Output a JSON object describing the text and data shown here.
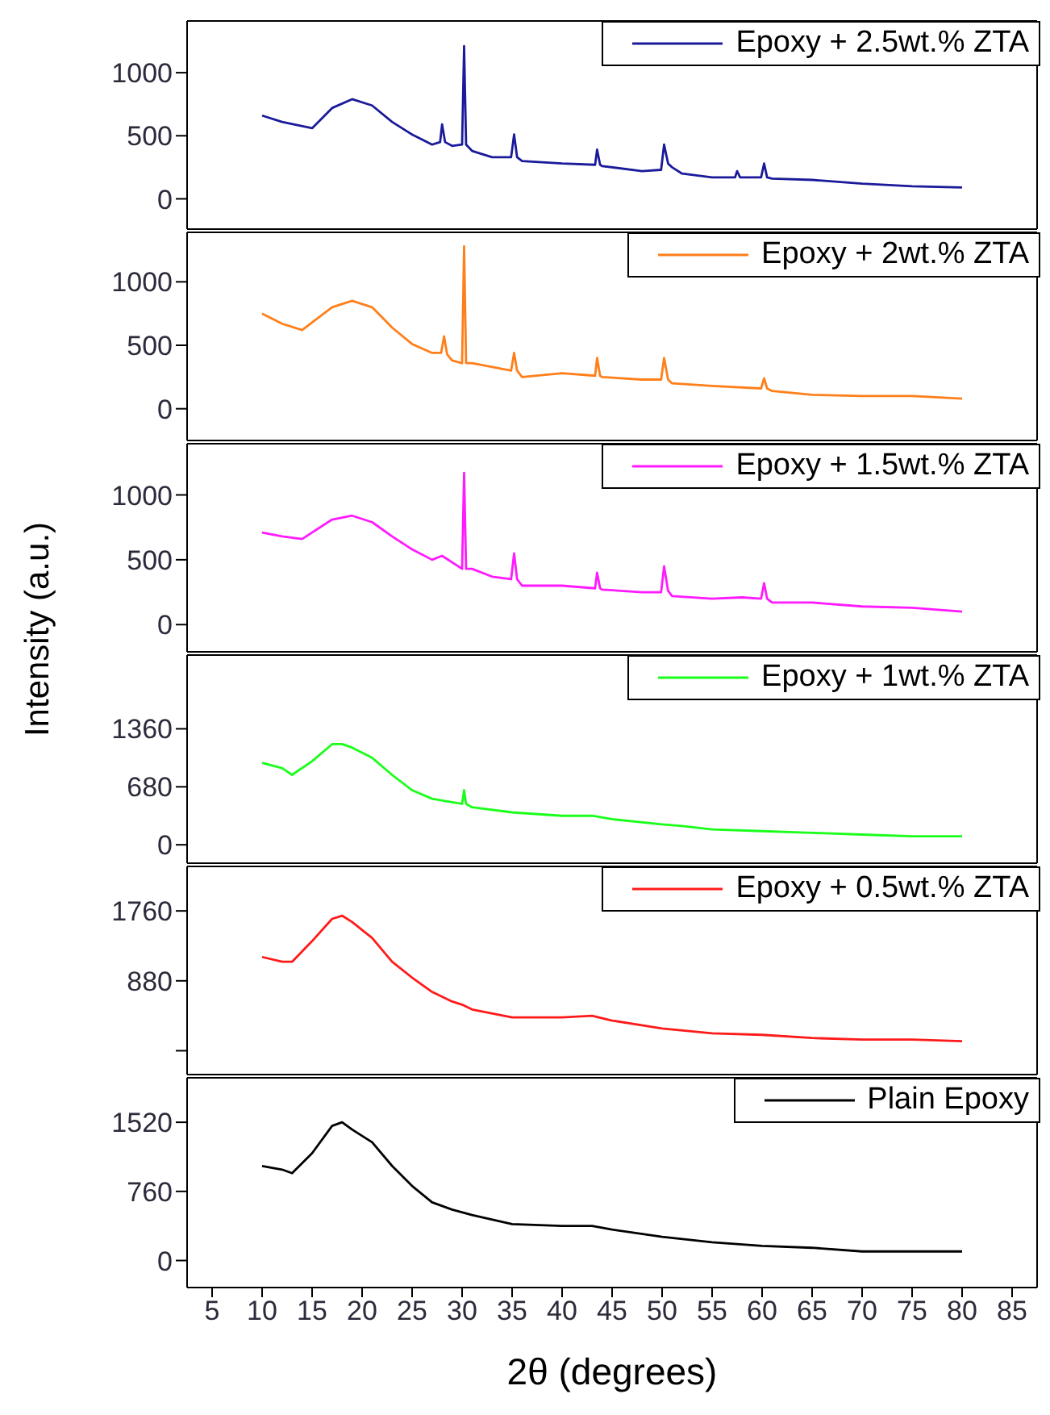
{
  "chart_data": [
    {
      "type": "line",
      "xlim": [
        2.5,
        87.5
      ],
      "xticks": [
        5,
        10,
        15,
        20,
        25,
        30,
        35,
        40,
        45,
        50,
        55,
        60,
        65,
        70,
        75,
        80,
        85
      ],
      "ylim": [
        -240,
        1410
      ],
      "yticks": [
        0,
        500,
        1000
      ],
      "tick_labels": "y",
      "legend": "top right",
      "marker": "none",
      "line_style": "solid",
      "series": [
        {
          "name": "Epoxy + 2.5wt.% ZTA",
          "color": "#1a1a9a",
          "x": [
            10,
            12,
            15,
            17,
            19,
            21,
            23,
            25,
            27,
            27.8,
            28,
            28.3,
            29,
            30,
            30.2,
            30.4,
            31,
            33,
            34.9,
            35.2,
            35.5,
            36,
            40,
            43.3,
            43.5,
            43.8,
            44,
            48,
            49.9,
            50.2,
            50.6,
            51,
            52,
            55,
            57.3,
            57.5,
            57.8,
            59.9,
            60.2,
            60.5,
            61,
            65,
            70,
            75,
            80
          ],
          "values": [
            660,
            610,
            560,
            720,
            790,
            740,
            610,
            510,
            430,
            450,
            590,
            450,
            420,
            430,
            1210,
            430,
            380,
            330,
            330,
            510,
            330,
            300,
            280,
            270,
            390,
            270,
            260,
            220,
            230,
            430,
            280,
            250,
            200,
            170,
            170,
            220,
            170,
            170,
            280,
            170,
            160,
            150,
            120,
            100,
            90
          ]
        }
      ]
    },
    {
      "type": "line",
      "xlim": [
        2.5,
        87.5
      ],
      "xticks": [
        5,
        10,
        15,
        20,
        25,
        30,
        35,
        40,
        45,
        50,
        55,
        60,
        65,
        70,
        75,
        80,
        85
      ],
      "ylim": [
        -250,
        1390
      ],
      "yticks": [
        0,
        500,
        1000
      ],
      "tick_labels": "y",
      "legend": "top right",
      "marker": "none",
      "line_style": "solid",
      "series": [
        {
          "name": "Epoxy + 2wt.% ZTA",
          "color": "#ff7f1a",
          "x": [
            10,
            12,
            14,
            17,
            19,
            21,
            23,
            25,
            27,
            27.9,
            28.2,
            28.5,
            29,
            30,
            30.2,
            30.4,
            31,
            33,
            34.9,
            35.2,
            35.5,
            36,
            40,
            43.3,
            43.5,
            43.8,
            44,
            48,
            49.9,
            50.2,
            50.6,
            51,
            55,
            59.9,
            60.2,
            60.5,
            61,
            65,
            70,
            75,
            80
          ],
          "values": [
            750,
            670,
            620,
            800,
            850,
            800,
            640,
            510,
            440,
            440,
            570,
            430,
            380,
            360,
            1280,
            360,
            360,
            330,
            300,
            440,
            300,
            250,
            280,
            260,
            400,
            260,
            250,
            230,
            230,
            400,
            230,
            200,
            180,
            160,
            240,
            160,
            140,
            110,
            100,
            100,
            80
          ]
        }
      ]
    },
    {
      "type": "line",
      "xlim": [
        2.5,
        87.5
      ],
      "xticks": [
        5,
        10,
        15,
        20,
        25,
        30,
        35,
        40,
        45,
        50,
        55,
        60,
        65,
        70,
        75,
        80,
        85
      ],
      "ylim": [
        -210,
        1395
      ],
      "yticks": [
        0,
        500,
        1000
      ],
      "tick_labels": "y",
      "legend": "top right",
      "marker": "none",
      "line_style": "solid",
      "ylabel": "Intensity (a.u.)",
      "series": [
        {
          "name": "Epoxy + 1.5wt.% ZTA",
          "color": "#ff1aff",
          "x": [
            10,
            12,
            14,
            17,
            19,
            21,
            23,
            25,
            27,
            28,
            30,
            30.2,
            30.4,
            31,
            33,
            34.9,
            35.2,
            35.5,
            36,
            40,
            43.3,
            43.5,
            43.8,
            44,
            48,
            49.9,
            50.2,
            50.6,
            51,
            55,
            58,
            59.9,
            60.2,
            60.5,
            61,
            65,
            70,
            75,
            80
          ],
          "values": [
            710,
            680,
            660,
            810,
            840,
            790,
            680,
            580,
            500,
            530,
            430,
            1170,
            430,
            430,
            370,
            350,
            550,
            350,
            300,
            300,
            280,
            400,
            280,
            270,
            250,
            250,
            450,
            260,
            220,
            200,
            210,
            200,
            320,
            200,
            170,
            170,
            140,
            130,
            100
          ]
        }
      ]
    },
    {
      "type": "line",
      "xlim": [
        2.5,
        87.5
      ],
      "xticks": [
        5,
        10,
        15,
        20,
        25,
        30,
        35,
        40,
        45,
        50,
        55,
        60,
        65,
        70,
        75,
        80,
        85
      ],
      "ylim": [
        -216,
        2225
      ],
      "yticks": [
        0,
        680,
        1360
      ],
      "tick_labels": "y",
      "legend": "top right",
      "marker": "none",
      "line_style": "solid",
      "series": [
        {
          "name": "Epoxy + 1wt.% ZTA",
          "color": "#1aff1a",
          "x": [
            10,
            12,
            13,
            15,
            17,
            18,
            19,
            21,
            23,
            25,
            27,
            29,
            30,
            30.2,
            30.4,
            31,
            35,
            40,
            43,
            45,
            50,
            52,
            55,
            60,
            65,
            70,
            75,
            80
          ],
          "values": [
            960,
            900,
            820,
            980,
            1180,
            1180,
            1140,
            1020,
            820,
            640,
            540,
            500,
            480,
            640,
            480,
            440,
            380,
            340,
            340,
            300,
            240,
            220,
            180,
            160,
            140,
            120,
            100,
            100
          ]
        }
      ]
    },
    {
      "type": "line",
      "xlim": [
        2.5,
        87.5
      ],
      "xticks": [
        5,
        10,
        15,
        20,
        25,
        30,
        35,
        40,
        45,
        50,
        55,
        60,
        65,
        70,
        75,
        80,
        85
      ],
      "ylim": [
        -300,
        2320
      ],
      "yticks": [
        {
          "value": 0,
          "label": null
        },
        880,
        1760
      ],
      "tick_labels": "y",
      "legend": "top right",
      "marker": "none",
      "line_style": "solid",
      "series": [
        {
          "name": "Epoxy + 0.5wt.% ZTA",
          "color": "#ff1a1a",
          "x": [
            10,
            12,
            13,
            15,
            17,
            18,
            19,
            21,
            23,
            25,
            27,
            29,
            30,
            31,
            35,
            40,
            43,
            45,
            50,
            55,
            60,
            65,
            70,
            75,
            80
          ],
          "values": [
            1180,
            1120,
            1120,
            1380,
            1660,
            1700,
            1620,
            1420,
            1120,
            920,
            740,
            620,
            580,
            520,
            420,
            420,
            440,
            380,
            280,
            220,
            200,
            160,
            140,
            140,
            120
          ]
        }
      ]
    },
    {
      "type": "line",
      "xlim": [
        2.5,
        87.5
      ],
      "xticks": [
        5,
        10,
        15,
        20,
        25,
        30,
        35,
        40,
        45,
        50,
        55,
        60,
        65,
        70,
        75,
        80,
        85
      ],
      "ylim": [
        -297,
        2009
      ],
      "yticks": [
        0,
        760,
        1520
      ],
      "legend": "top right",
      "marker": "none",
      "line_style": "solid",
      "xlabel": "2θ (degrees)",
      "series": [
        {
          "name": "Plain Epoxy",
          "color": "#000000",
          "x": [
            10,
            12,
            13,
            15,
            17,
            18,
            19,
            21,
            23,
            25,
            27,
            29,
            31,
            35,
            40,
            43,
            45,
            50,
            55,
            60,
            65,
            70,
            75,
            80
          ],
          "values": [
            1040,
            1000,
            960,
            1180,
            1480,
            1520,
            1440,
            1300,
            1040,
            820,
            640,
            560,
            500,
            400,
            380,
            380,
            340,
            260,
            200,
            160,
            140,
            100,
            100,
            100
          ]
        }
      ]
    }
  ]
}
